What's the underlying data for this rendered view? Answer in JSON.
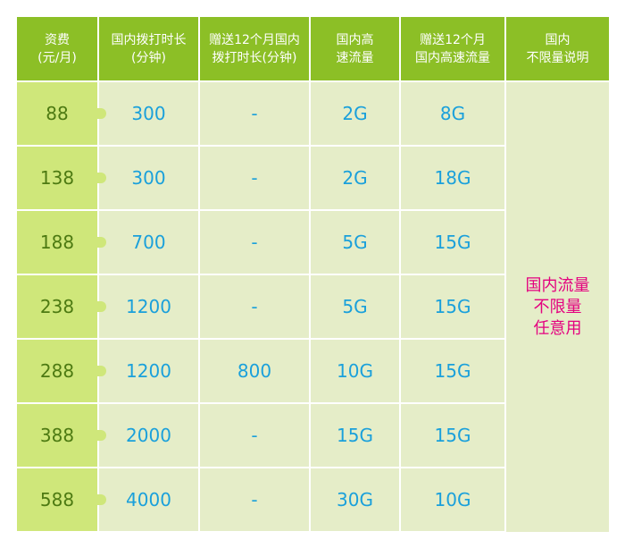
{
  "headers": [
    {
      "l1": "资费",
      "l2": "(元/月)"
    },
    {
      "l1": "国内拨打时长",
      "l2": "(分钟)"
    },
    {
      "l1": "赠送12个月国内",
      "l2": "拨打时长(分钟)"
    },
    {
      "l1": "国内高",
      "l2": "速流量"
    },
    {
      "l1": "赠送12个月",
      "l2": "国内高速流量"
    },
    {
      "l1": "国内",
      "l2": "不限量说明"
    }
  ],
  "rows": [
    {
      "fee": "88",
      "minutes": "300",
      "bonus_minutes": "-",
      "data": "2G",
      "bonus_data": "8G"
    },
    {
      "fee": "138",
      "minutes": "300",
      "bonus_minutes": "-",
      "data": "2G",
      "bonus_data": "18G"
    },
    {
      "fee": "188",
      "minutes": "700",
      "bonus_minutes": "-",
      "data": "5G",
      "bonus_data": "15G"
    },
    {
      "fee": "238",
      "minutes": "1200",
      "bonus_minutes": "-",
      "data": "5G",
      "bonus_data": "15G"
    },
    {
      "fee": "288",
      "minutes": "1200",
      "bonus_minutes": "800",
      "data": "10G",
      "bonus_data": "15G"
    },
    {
      "fee": "388",
      "minutes": "2000",
      "bonus_minutes": "-",
      "data": "15G",
      "bonus_data": "15G"
    },
    {
      "fee": "588",
      "minutes": "4000",
      "bonus_minutes": "-",
      "data": "30G",
      "bonus_data": "10G"
    }
  ],
  "note": {
    "l1": "国内流量",
    "l2": "不限量",
    "l3": "任意用"
  },
  "colors": {
    "header": "#8cbf26",
    "fee_column": "#cfe77a",
    "body": "#e5edc8",
    "value_text": "#1aa0db",
    "fee_text": "#4d7a12",
    "note_text": "#e4007f"
  }
}
